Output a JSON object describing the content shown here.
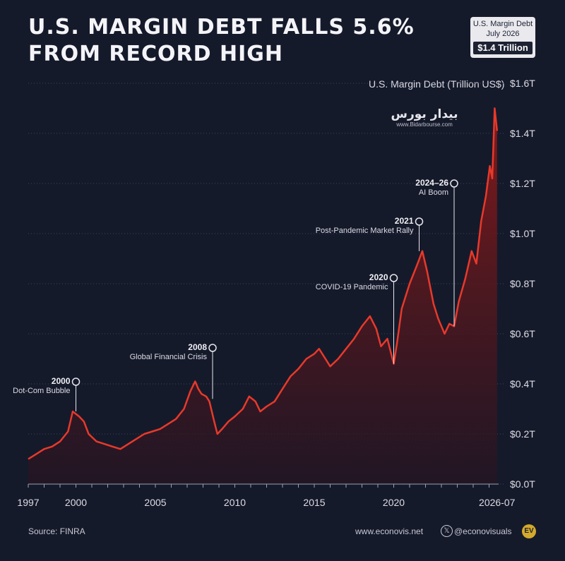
{
  "header": {
    "title": "U.S. MARGIN DEBT FALLS 5.6% FROM RECORD HIGH",
    "badge_line1": "U.S. Margin Debt",
    "badge_line2": "July 2026",
    "badge_value": "$1.4 Trillion"
  },
  "footer": {
    "source": "Source: FINRA",
    "website": "www.econovis.net",
    "handle": "@econovisuals",
    "x_icon": "x-logo-icon",
    "logo_text": "EV"
  },
  "watermark": {
    "name": "بیدار بورس",
    "url": "www.Bidarbourse.com"
  },
  "colors": {
    "background": "#151a2b",
    "line": "#e8392a",
    "area_top": "#8a1a1a",
    "badge": "#e9e9ee"
  },
  "chart_data": {
    "type": "area",
    "title": "U.S. MARGIN DEBT FALLS 5.6% FROM RECORD HIGH",
    "ylabel": "U.S. Margin Debt (Trillion US$)",
    "xlabel": "",
    "ylim": [
      0,
      1.6
    ],
    "y_unit": "Trillion US$",
    "y_ticks": [
      "$0.0T",
      "$0.2T",
      "$0.4T",
      "$0.6T",
      "$0.8T",
      "$1.0T",
      "$1.2T",
      "$1.4T",
      "$1.6T"
    ],
    "x_ticks": [
      {
        "label": "1997",
        "value": 1997
      },
      {
        "label": "2000",
        "value": 2000
      },
      {
        "label": "2005",
        "value": 2005
      },
      {
        "label": "2010",
        "value": 2010
      },
      {
        "label": "2015",
        "value": 2015
      },
      {
        "label": "2020",
        "value": 2020
      },
      {
        "label": "2026-07",
        "value": 2026.5
      }
    ],
    "xlim": [
      1997,
      2026.6
    ],
    "grid": true,
    "series": [
      {
        "x": [
          1997,
          1997.5,
          1998,
          1998.5,
          1999,
          1999.5,
          1999.8,
          2000.2,
          2000.5,
          2000.8,
          2001.3,
          2001.8,
          2002.3,
          2002.8,
          2003.3,
          2003.8,
          2004.3,
          2004.8,
          2005.3,
          2005.8,
          2006.3,
          2006.8,
          2007.2,
          2007.5,
          2007.7,
          2007.9,
          2008.2,
          2008.4,
          2008.7,
          2008.9,
          2009.2,
          2009.6,
          2010,
          2010.5,
          2010.9,
          2011.3,
          2011.6,
          2012,
          2012.5,
          2013,
          2013.5,
          2014,
          2014.5,
          2015,
          2015.3,
          2015.7,
          2016,
          2016.5,
          2017,
          2017.5,
          2018,
          2018.5,
          2018.9,
          2019.2,
          2019.6,
          2020.0,
          2020.2,
          2020.5,
          2021,
          2021.5,
          2021.8,
          2022.1,
          2022.5,
          2022.8,
          2023.2,
          2023.5,
          2023.8,
          2024.1,
          2024.5,
          2024.9,
          2025.2,
          2025.5,
          2025.8,
          2026.05,
          2026.2,
          2026.35,
          2026.5
        ],
        "y": [
          0.1,
          0.12,
          0.14,
          0.15,
          0.17,
          0.21,
          0.29,
          0.27,
          0.25,
          0.2,
          0.17,
          0.16,
          0.15,
          0.14,
          0.16,
          0.18,
          0.2,
          0.21,
          0.22,
          0.24,
          0.26,
          0.3,
          0.37,
          0.41,
          0.38,
          0.36,
          0.35,
          0.33,
          0.25,
          0.2,
          0.22,
          0.25,
          0.27,
          0.3,
          0.35,
          0.33,
          0.29,
          0.31,
          0.33,
          0.38,
          0.43,
          0.46,
          0.5,
          0.52,
          0.54,
          0.5,
          0.47,
          0.5,
          0.54,
          0.58,
          0.63,
          0.67,
          0.62,
          0.55,
          0.58,
          0.48,
          0.56,
          0.7,
          0.8,
          0.88,
          0.93,
          0.85,
          0.72,
          0.66,
          0.6,
          0.64,
          0.63,
          0.73,
          0.82,
          0.93,
          0.88,
          1.05,
          1.15,
          1.27,
          1.22,
          1.5,
          1.41
        ]
      }
    ],
    "annotations": [
      {
        "year": "2000",
        "label": "Dot-Com Bubble",
        "x": 2000,
        "y": 0.29
      },
      {
        "year": "2008",
        "label": "Global Financial Crisis",
        "x": 2008.6,
        "y": 0.34
      },
      {
        "year": "2020",
        "label": "COVID-19 Pandemic",
        "x": 2020.0,
        "y": 0.48
      },
      {
        "year": "2021",
        "label": "Post-Pandemic Market Rally",
        "x": 2021.6,
        "y": 0.93
      },
      {
        "year": "2024–26",
        "label": "AI Boom",
        "x": 2023.8,
        "y": 0.63
      }
    ]
  }
}
